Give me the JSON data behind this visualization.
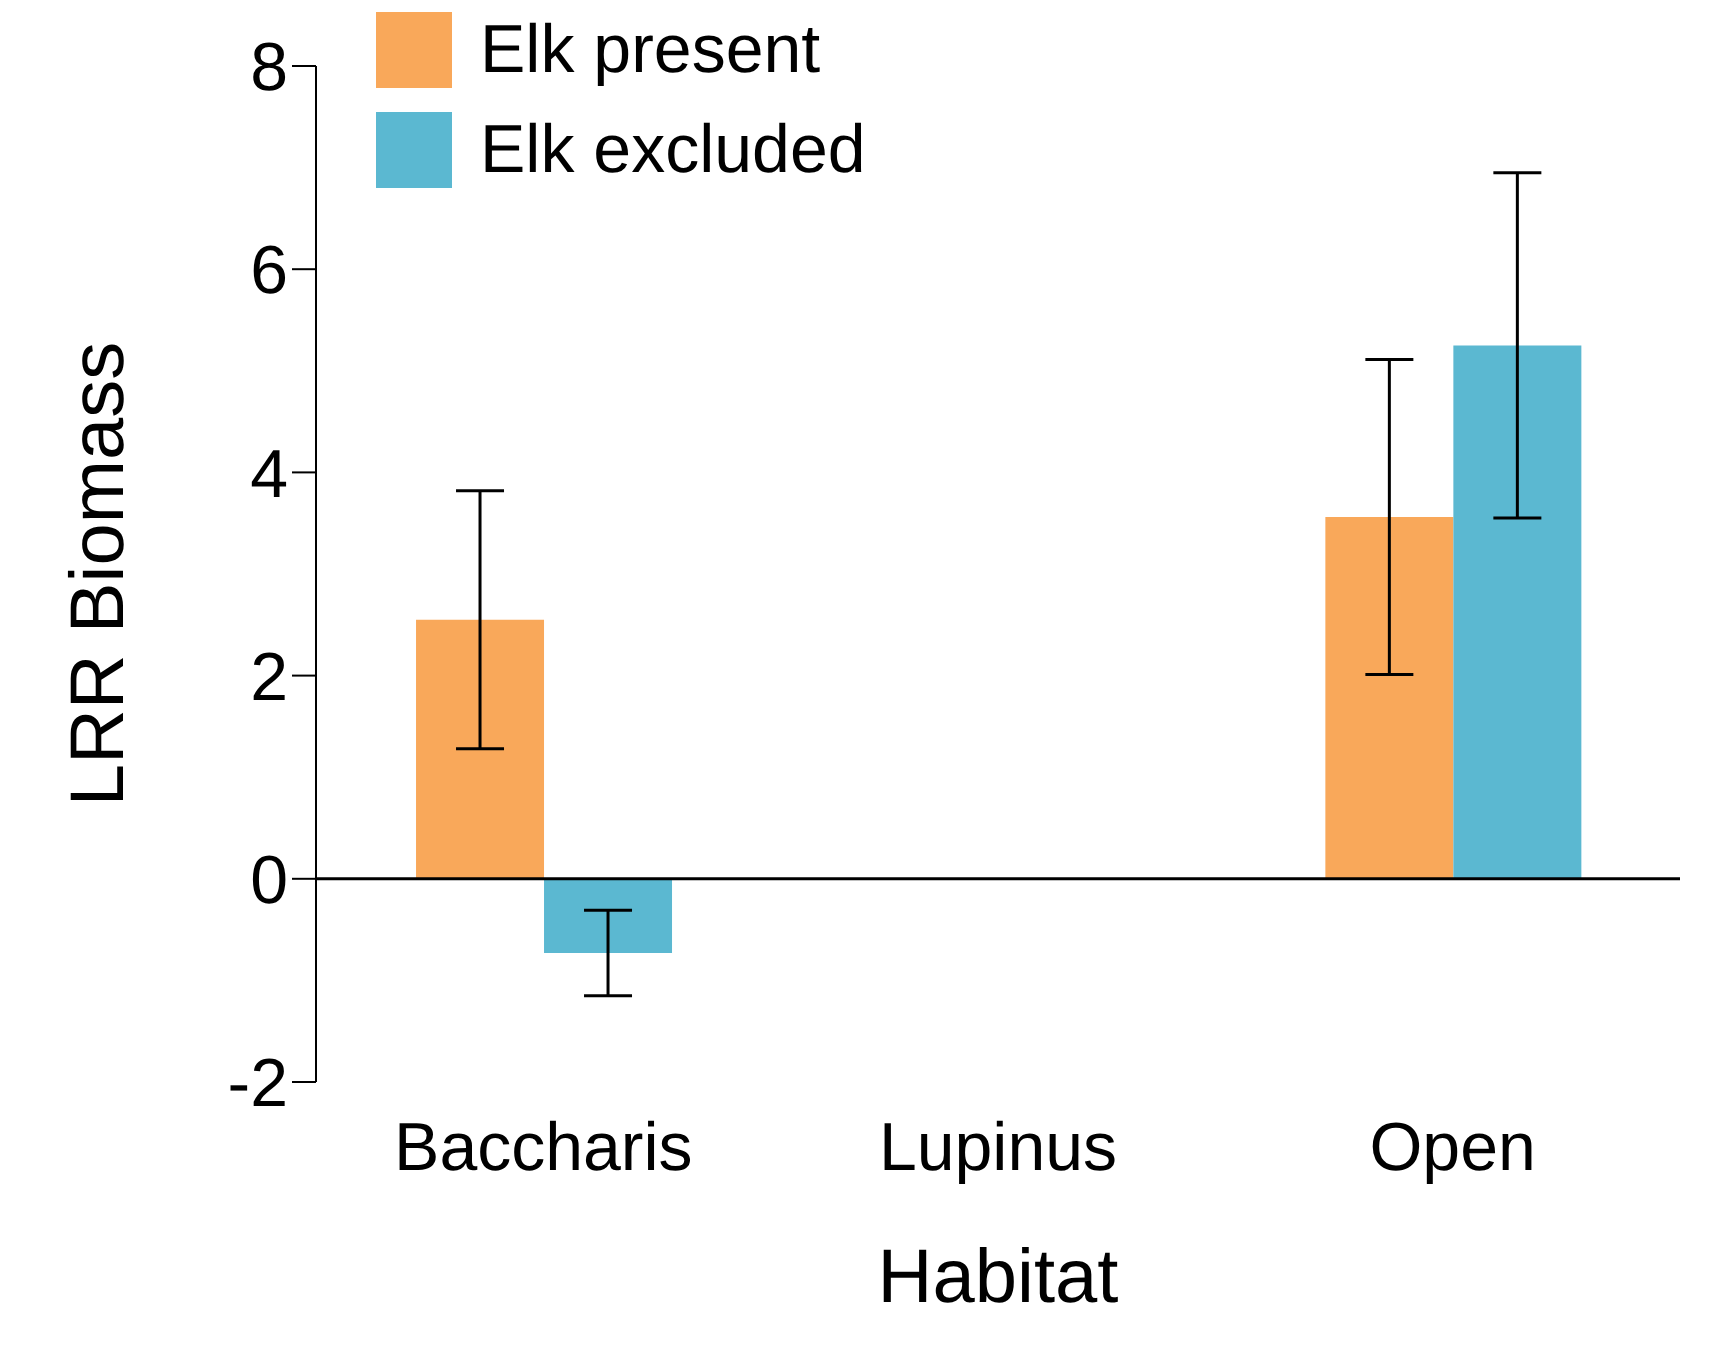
{
  "chart_data": {
    "type": "bar",
    "xlabel": "Habitat",
    "ylabel": "LRR Biomass",
    "categories": [
      "Baccharis",
      "Lupinus",
      "Open"
    ],
    "series": [
      {
        "name": "Elk present",
        "color": "#f9a85a",
        "values": [
          2.55,
          0,
          3.56
        ],
        "errors": [
          1.27,
          null,
          1.55
        ]
      },
      {
        "name": "Elk excluded",
        "color": "#5bb8d1",
        "values": [
          -0.73,
          0,
          5.25
        ],
        "errors": [
          0.42,
          null,
          1.7
        ]
      }
    ],
    "ylim": [
      -2,
      8
    ],
    "yticks": [
      -2,
      0,
      2,
      4,
      6,
      8
    ],
    "grid": false,
    "ref_lines": [
      {
        "axis": "y",
        "value": 0,
        "color": "#000000"
      }
    ],
    "legend": "top left"
  }
}
